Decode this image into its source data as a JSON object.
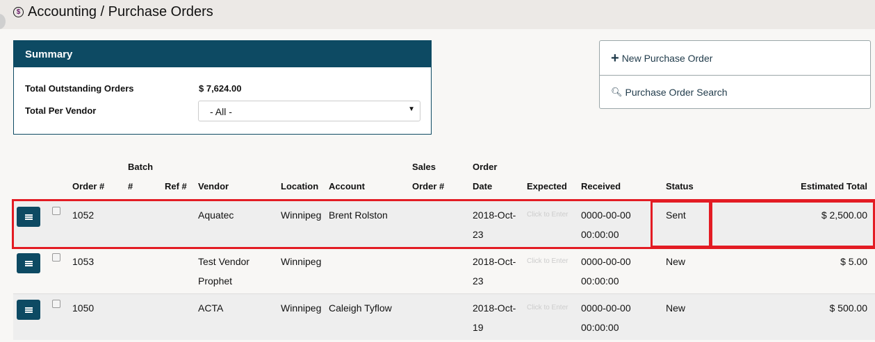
{
  "header": {
    "title": "Accounting / Purchase Orders",
    "icon": "dollar-circle-icon"
  },
  "summary": {
    "heading": "Summary",
    "outstanding_label": "Total Outstanding Orders",
    "outstanding_value": "$ 7,624.00",
    "vendor_label": "Total Per Vendor",
    "vendor_select": "- All -"
  },
  "actions": {
    "new": "New Purchase Order",
    "search": "Purchase Order Search"
  },
  "table": {
    "headers": {
      "order": "Order #",
      "batch1": "Batch",
      "batch2": "#",
      "ref": "Ref #",
      "vendor": "Vendor",
      "location": "Location",
      "account": "Account",
      "sales1": "Sales",
      "sales2": "Order #",
      "date1": "Order",
      "date2": "Date",
      "expected": "Expected",
      "received": "Received",
      "status": "Status",
      "total": "Estimated Total"
    },
    "rows": [
      {
        "order": "1052",
        "vendor1": "Aquatec",
        "vendor2": "",
        "location": "Winnipeg",
        "account": "Brent Rolston",
        "date1": "2018-Oct-",
        "date2": "23",
        "expected": "Click to Enter",
        "rec1": "0000-00-00",
        "rec2": "00:00:00",
        "status": "Sent",
        "total": "$ 2,500.00"
      },
      {
        "order": "1053",
        "vendor1": "Test Vendor",
        "vendor2": "Prophet",
        "location": "Winnipeg",
        "account": "",
        "date1": "2018-Oct-",
        "date2": "23",
        "expected": "Click to Enter",
        "rec1": "0000-00-00",
        "rec2": "00:00:00",
        "status": "New",
        "total": "$ 5.00"
      },
      {
        "order": "1050",
        "vendor1": "ACTA",
        "vendor2": "",
        "location": "Winnipeg",
        "account": "Caleigh Tyflow",
        "date1": "2018-Oct-",
        "date2": "19",
        "expected": "Click to Enter",
        "rec1": "0000-00-00",
        "rec2": "00:00:00",
        "status": "New",
        "total": "$ 500.00"
      }
    ]
  },
  "colors": {
    "primary": "#0d4a63",
    "highlight": "#e31b23"
  }
}
